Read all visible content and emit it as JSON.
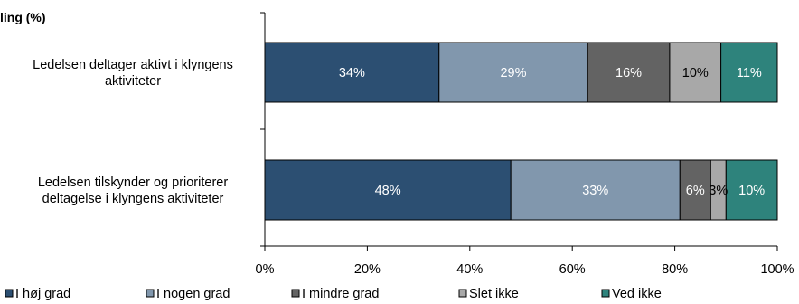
{
  "chart_data": {
    "type": "bar",
    "orientation": "horizontal",
    "stacked": true,
    "title": "ling (%)",
    "categories": [
      [
        "Ledelsen deltager aktivt i klyngens",
        "aktiviteter"
      ],
      [
        "Ledelsen tilskynder og prioriterer",
        "deltagelse i klyngens aktiviteter"
      ]
    ],
    "series": [
      {
        "name": "I høj grad",
        "color": "#2c4f72",
        "label_color": "#ffffff",
        "values": [
          34,
          48
        ]
      },
      {
        "name": "I nogen grad",
        "color": "#8197ad",
        "label_color": "#ffffff",
        "values": [
          29,
          33
        ]
      },
      {
        "name": "I mindre grad",
        "color": "#636363",
        "label_color": "#ffffff",
        "values": [
          16,
          6
        ]
      },
      {
        "name": "Slet ikke",
        "color": "#a8a8a8",
        "label_color": "#000000",
        "values": [
          10,
          3
        ]
      },
      {
        "name": "Ved ikke",
        "color": "#2e837c",
        "label_color": "#ffffff",
        "values": [
          11,
          10
        ]
      }
    ],
    "xlim": [
      0,
      100
    ],
    "xticks": [
      "0%",
      "20%",
      "40%",
      "60%",
      "80%",
      "100%"
    ],
    "grid": false,
    "legend_position": "bottom"
  }
}
